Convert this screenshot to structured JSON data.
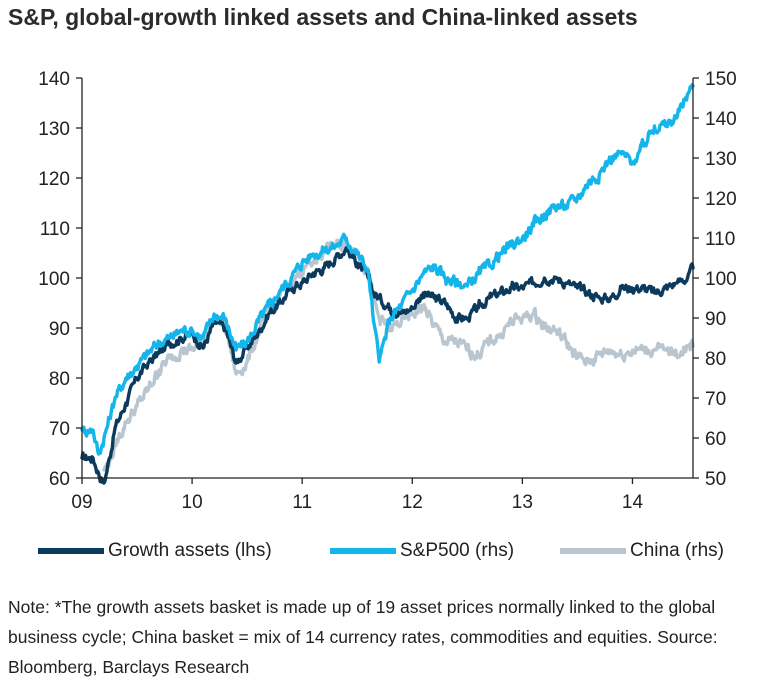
{
  "title": "S&P, global-growth linked assets and China-linked assets",
  "note": "Note: *The growth assets basket is made up of 19 asset prices normally linked to the global business cycle; China basket = mix of 14 currency rates, commodities and equities. Source: Bloomberg, Barclays Research",
  "colors": {
    "growth": "#0c3a5c",
    "sp500": "#13b5ea",
    "china": "#b9c5cf",
    "axis": "#222222"
  },
  "chart_data": {
    "type": "line",
    "title": "S&P, global-growth linked assets and China-linked assets",
    "x_tick_labels": [
      "09",
      "10",
      "11",
      "12",
      "13",
      "14"
    ],
    "x_ticks": [
      2009,
      2010,
      2011,
      2012,
      2013,
      2014
    ],
    "xlim": [
      2009,
      2014.55
    ],
    "y_left": {
      "label": "",
      "ylim": [
        60,
        140
      ],
      "ticks": [
        60,
        70,
        80,
        90,
        100,
        110,
        120,
        130,
        140
      ]
    },
    "y_right": {
      "label": "",
      "ylim": [
        50,
        150
      ],
      "ticks": [
        50,
        60,
        70,
        80,
        90,
        100,
        110,
        120,
        130,
        140,
        150
      ]
    },
    "series": [
      {
        "name": "Growth assets (lhs)",
        "axis": "left",
        "color_key": "growth",
        "x": [
          2009.0,
          2009.05,
          2009.1,
          2009.15,
          2009.2,
          2009.25,
          2009.3,
          2009.4,
          2009.5,
          2009.6,
          2009.7,
          2009.8,
          2009.9,
          2010.0,
          2010.1,
          2010.2,
          2010.3,
          2010.4,
          2010.5,
          2010.6,
          2010.7,
          2010.8,
          2010.9,
          2011.0,
          2011.1,
          2011.2,
          2011.3,
          2011.4,
          2011.5,
          2011.6,
          2011.65,
          2011.7,
          2011.8,
          2011.9,
          2012.0,
          2012.1,
          2012.2,
          2012.3,
          2012.4,
          2012.5,
          2012.6,
          2012.7,
          2012.8,
          2012.9,
          2013.0,
          2013.1,
          2013.2,
          2013.3,
          2013.4,
          2013.5,
          2013.6,
          2013.7,
          2013.8,
          2013.9,
          2014.0,
          2014.1,
          2014.2,
          2014.3,
          2014.4,
          2014.5,
          2014.55
        ],
        "values": [
          64,
          64,
          64,
          61,
          59,
          64,
          70,
          75,
          80,
          83,
          85,
          87,
          88,
          89,
          86,
          91,
          90,
          83,
          86,
          89,
          93,
          95,
          98,
          99,
          101,
          102,
          104,
          106,
          103,
          100,
          97,
          96,
          94,
          93,
          94,
          97,
          96,
          95,
          92,
          92,
          94,
          96,
          97,
          98,
          98,
          99,
          100,
          100,
          99,
          98,
          97,
          96,
          96,
          98,
          98,
          98,
          97,
          98,
          99,
          100,
          102
        ]
      },
      {
        "name": "S&P500 (rhs)",
        "axis": "right",
        "color_key": "sp500",
        "x": [
          2009.0,
          2009.1,
          2009.15,
          2009.2,
          2009.25,
          2009.3,
          2009.4,
          2009.5,
          2009.6,
          2009.7,
          2009.8,
          2009.9,
          2010.0,
          2010.1,
          2010.2,
          2010.3,
          2010.4,
          2010.5,
          2010.6,
          2010.7,
          2010.8,
          2010.9,
          2011.0,
          2011.1,
          2011.2,
          2011.3,
          2011.4,
          2011.5,
          2011.6,
          2011.65,
          2011.7,
          2011.8,
          2011.9,
          2012.0,
          2012.1,
          2012.2,
          2012.3,
          2012.4,
          2012.5,
          2012.6,
          2012.7,
          2012.8,
          2012.9,
          2013.0,
          2013.1,
          2013.2,
          2013.3,
          2013.4,
          2013.5,
          2013.6,
          2013.7,
          2013.8,
          2013.9,
          2014.0,
          2014.1,
          2014.2,
          2014.3,
          2014.4,
          2014.5,
          2014.55
        ],
        "values": [
          62,
          62,
          56,
          60,
          65,
          70,
          75,
          78,
          81,
          84,
          85,
          87,
          87,
          85,
          91,
          90,
          82,
          84,
          89,
          93,
          97,
          100,
          104,
          106,
          107,
          108,
          110,
          106,
          102,
          89,
          79,
          90,
          93,
          97,
          101,
          103,
          100,
          99,
          98,
          101,
          103,
          106,
          108,
          110,
          113,
          116,
          118,
          118,
          120,
          124,
          126,
          130,
          131,
          129,
          133,
          138,
          138,
          140,
          146,
          148
        ]
      },
      {
        "name": "China (rhs)",
        "axis": "right",
        "color_key": "china",
        "x": [
          2009.2,
          2009.25,
          2009.3,
          2009.4,
          2009.5,
          2009.6,
          2009.7,
          2009.8,
          2009.9,
          2010.0,
          2010.1,
          2010.2,
          2010.3,
          2010.4,
          2010.5,
          2010.6,
          2010.7,
          2010.8,
          2010.9,
          2011.0,
          2011.1,
          2011.2,
          2011.3,
          2011.4,
          2011.5,
          2011.6,
          2011.65,
          2011.7,
          2011.8,
          2011.9,
          2012.0,
          2012.1,
          2012.2,
          2012.3,
          2012.4,
          2012.5,
          2012.6,
          2012.7,
          2012.8,
          2012.9,
          2013.0,
          2013.1,
          2013.2,
          2013.3,
          2013.4,
          2013.5,
          2013.6,
          2013.7,
          2013.8,
          2013.9,
          2014.0,
          2014.1,
          2014.2,
          2014.3,
          2014.4,
          2014.5,
          2014.55
        ],
        "values": [
          52,
          54,
          58,
          64,
          68,
          72,
          77,
          80,
          82,
          82,
          85,
          90,
          88,
          76,
          79,
          86,
          92,
          96,
          99,
          102,
          104,
          107,
          108,
          108,
          107,
          101,
          94,
          90,
          87,
          89,
          91,
          93,
          88,
          84,
          84,
          82,
          81,
          84,
          86,
          89,
          90,
          91,
          88,
          87,
          84,
          80,
          79,
          81,
          82,
          81,
          82,
          82,
          82,
          82,
          81,
          83,
          83
        ]
      }
    ],
    "legend": [
      "Growth assets (lhs)",
      "S&P500 (rhs)",
      "China (rhs)"
    ],
    "legend_position": "bottom",
    "grid": false
  }
}
